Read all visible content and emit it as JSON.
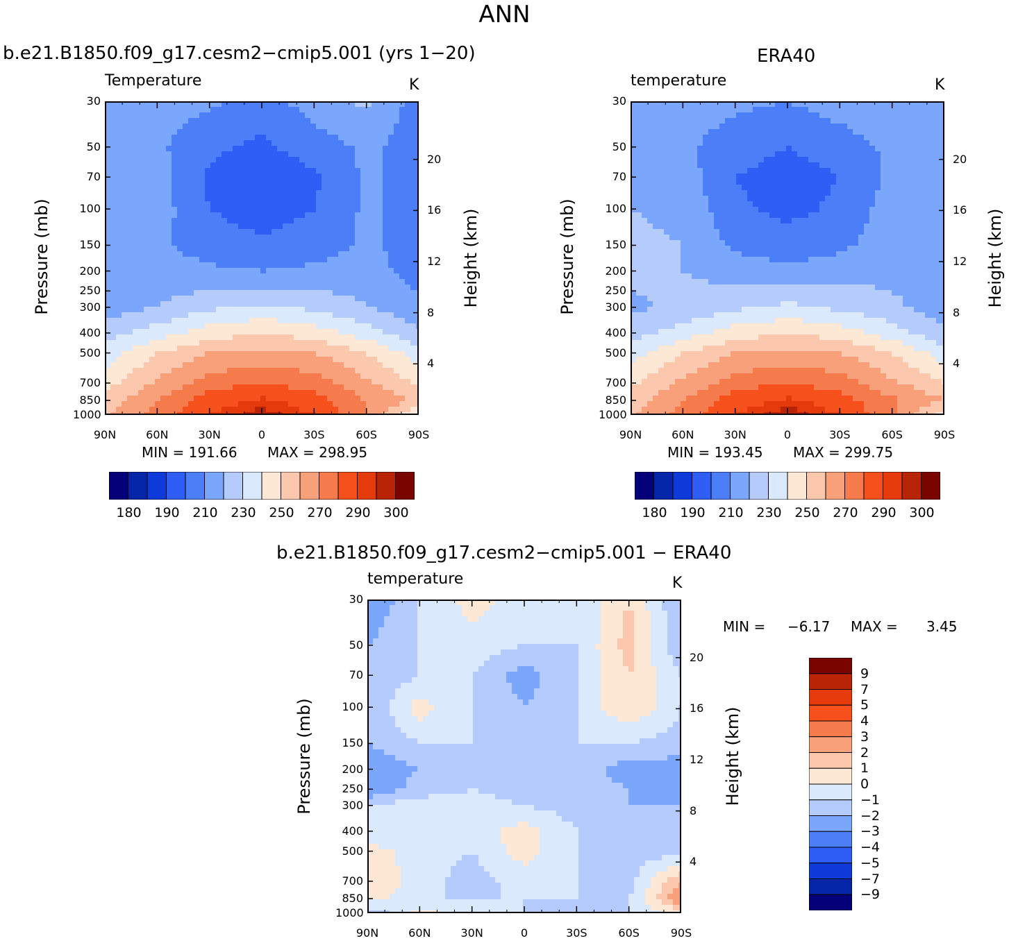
{
  "page": {
    "title": "ANN"
  },
  "panels": [
    {
      "title": "b.e21.B1850.f09_g17.cesm2−cmip5.001 (yrs 1−20)",
      "var_label": "Temperature",
      "units": "K",
      "min_text": "MIN = 191.66",
      "max_text": "MAX = 298.95"
    },
    {
      "title": "ERA40",
      "var_label": "temperature",
      "units": "K",
      "min_text": "MIN = 193.45",
      "max_text": "MAX = 299.75"
    },
    {
      "title": "b.e21.B1850.f09_g17.cesm2−cmip5.001 − ERA40",
      "var_label": "temperature",
      "units": "K",
      "min_text": "MIN =",
      "min_value": "−6.17",
      "max_text": "MAX =",
      "max_value": "3.45"
    }
  ],
  "axes": {
    "ylabel": "Pressure (mb)",
    "y2label": "Height (km)",
    "pressure_ticks": [
      "30",
      "50",
      "70",
      "100",
      "150",
      "200",
      "250",
      "300",
      "400",
      "500",
      "700",
      "850",
      "1000"
    ],
    "height_ticks": [
      "20",
      "16",
      "12",
      "8",
      "4"
    ],
    "lat_ticks": [
      "90N",
      "60N",
      "30N",
      "0",
      "30S",
      "60S",
      "90S"
    ]
  },
  "colorbars": {
    "abs_labels": [
      "180",
      "190",
      "210",
      "230",
      "250",
      "270",
      "290",
      "300"
    ],
    "abs_colors": [
      "#030079",
      "#0425a8",
      "#0d3ad9",
      "#2e5ef5",
      "#4c7ef7",
      "#7aa6fb",
      "#b4cbfb",
      "#dbe9fd",
      "#fde8d5",
      "#fbc8ad",
      "#f7a07a",
      "#f57a4c",
      "#f6511d",
      "#e53a0b",
      "#b92306",
      "#7a0400"
    ],
    "diff_labels": [
      "9",
      "7",
      "5",
      "4",
      "3",
      "2",
      "1",
      "0",
      "−1",
      "−2",
      "−3",
      "−4",
      "−5",
      "−7",
      "−9"
    ],
    "diff_colors": [
      "#7a0400",
      "#b92306",
      "#e53a0b",
      "#f6511d",
      "#f57a4c",
      "#f7a07a",
      "#fbc8ad",
      "#fde8d5",
      "#dbe9fd",
      "#b4cbfb",
      "#7aa6fb",
      "#4c7ef7",
      "#2e5ef5",
      "#0d3ad9",
      "#0425a8",
      "#030079"
    ]
  },
  "chart_data": [
    {
      "type": "heatmap",
      "title": "b.e21.B1850.f09_g17.cesm2−cmip5.001 (yrs 1−20)",
      "variable": "Temperature",
      "units": "K",
      "x": [
        "90N",
        "60N",
        "30N",
        "0",
        "30S",
        "60S",
        "90S"
      ],
      "y_pressure_mb": [
        30,
        50,
        70,
        100,
        150,
        200,
        250,
        300,
        400,
        500,
        700,
        850,
        1000
      ],
      "min": 191.66,
      "max": 298.95,
      "approx_values": [
        [
          210,
          215,
          212,
          205,
          215,
          222,
          205
        ],
        [
          215,
          212,
          202,
          198,
          205,
          212,
          205
        ],
        [
          215,
          215,
          198,
          193,
          198,
          212,
          205
        ],
        [
          218,
          215,
          200,
          195,
          200,
          212,
          205
        ],
        [
          220,
          212,
          205,
          202,
          205,
          212,
          205
        ],
        [
          220,
          215,
          212,
          210,
          212,
          215,
          205
        ],
        [
          218,
          218,
          220,
          222,
          220,
          218,
          210
        ],
        [
          215,
          220,
          228,
          232,
          228,
          220,
          212
        ],
        [
          225,
          235,
          245,
          250,
          245,
          235,
          222
        ],
        [
          235,
          250,
          260,
          262,
          260,
          250,
          235
        ],
        [
          245,
          262,
          275,
          280,
          275,
          262,
          248
        ],
        [
          255,
          270,
          285,
          292,
          285,
          270,
          258
        ],
        [
          258,
          275,
          290,
          298,
          290,
          270,
          240
        ]
      ]
    },
    {
      "type": "heatmap",
      "title": "ERA40",
      "variable": "temperature",
      "units": "K",
      "x": [
        "90N",
        "60N",
        "30N",
        "0",
        "30S",
        "60S",
        "90S"
      ],
      "y_pressure_mb": [
        30,
        50,
        70,
        100,
        150,
        200,
        250,
        300,
        400,
        500,
        700,
        850,
        1000
      ],
      "min": 193.45,
      "max": 299.75,
      "approx_values": [
        [
          212,
          215,
          212,
          210,
          215,
          218,
          212
        ],
        [
          215,
          212,
          205,
          200,
          205,
          212,
          210
        ],
        [
          215,
          215,
          200,
          195,
          200,
          212,
          210
        ],
        [
          220,
          218,
          202,
          197,
          202,
          215,
          210
        ],
        [
          222,
          220,
          208,
          205,
          208,
          215,
          210
        ],
        [
          222,
          220,
          215,
          212,
          215,
          218,
          212
        ],
        [
          220,
          222,
          222,
          225,
          222,
          220,
          215
        ],
        [
          218,
          222,
          228,
          232,
          228,
          222,
          215
        ],
        [
          225,
          235,
          245,
          250,
          245,
          235,
          222
        ],
        [
          235,
          250,
          260,
          262,
          260,
          250,
          235
        ],
        [
          248,
          262,
          275,
          280,
          275,
          262,
          250
        ],
        [
          255,
          270,
          285,
          292,
          285,
          272,
          260
        ],
        [
          258,
          275,
          290,
          299,
          290,
          272,
          245
        ]
      ]
    },
    {
      "type": "heatmap",
      "title": "b.e21.B1850.f09_g17.cesm2−cmip5.001 − ERA40",
      "variable": "temperature",
      "units": "K",
      "x": [
        "90N",
        "60N",
        "30N",
        "0",
        "30S",
        "60S",
        "90S"
      ],
      "y_pressure_mb": [
        30,
        50,
        70,
        100,
        150,
        200,
        250,
        300,
        400,
        500,
        700,
        850,
        1000
      ],
      "min": -6.17,
      "max": 3.45,
      "approx_values": [
        [
          -3,
          -1,
          0.5,
          -0.5,
          -1,
          1,
          -2
        ],
        [
          -2,
          -1,
          -0.5,
          -1,
          -1,
          1.5,
          -2
        ],
        [
          -2,
          -1,
          -1,
          -2.5,
          -1,
          1,
          -1
        ],
        [
          -2,
          0.5,
          -1,
          -2,
          -1,
          1,
          -1
        ],
        [
          -2,
          -1,
          -1,
          -1.5,
          -1,
          -1,
          -1.5
        ],
        [
          -3,
          -2,
          -1.5,
          -2,
          -1.5,
          -2.5,
          -2.5
        ],
        [
          -3,
          -1.5,
          -1,
          -1.5,
          -1.5,
          -2,
          -3
        ],
        [
          -1,
          -0.5,
          -0.5,
          -1,
          -1.5,
          -2,
          -2
        ],
        [
          -1,
          -0.5,
          -0.5,
          0.5,
          -1,
          -1.5,
          -1.5
        ],
        [
          0.5,
          -0.5,
          -1,
          0.5,
          -1,
          -1.5,
          -1.5
        ],
        [
          1,
          -0.5,
          -1.5,
          -0.5,
          -1,
          -1.5,
          2
        ],
        [
          0.5,
          -1,
          -1,
          -1,
          -1,
          -1,
          3
        ],
        [
          -2,
          0.5,
          -1,
          -1,
          -1.5,
          -1,
          0.5
        ]
      ]
    }
  ]
}
